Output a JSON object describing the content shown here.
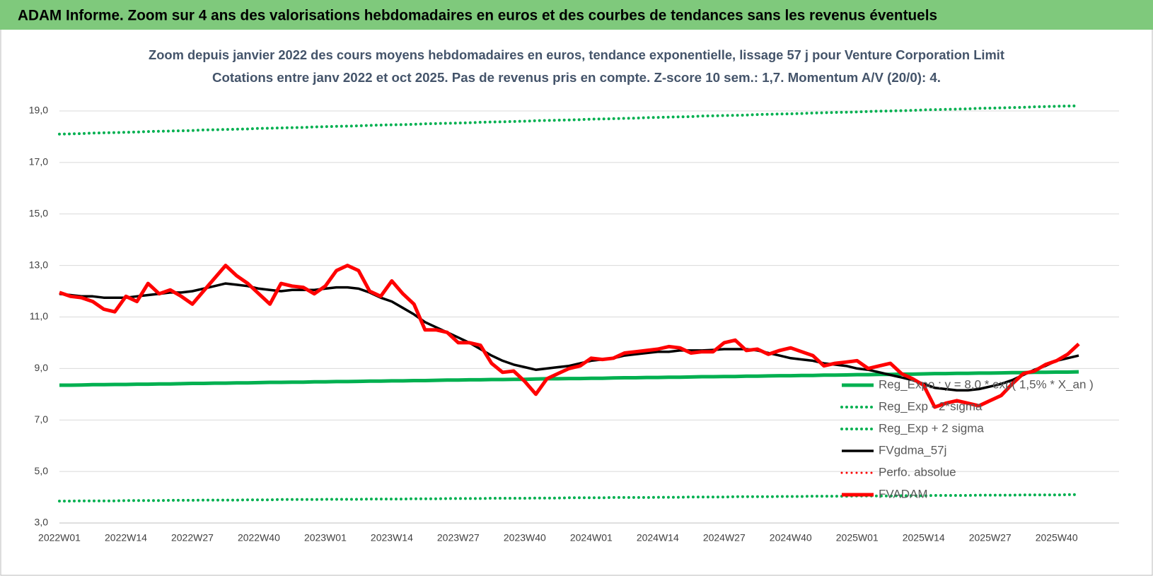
{
  "header": {
    "title": "ADAM Informe. Zoom sur 4 ans des valorisations hebdomadaires en euros et des courbes de tendances sans les revenus éventuels"
  },
  "chart_data": {
    "type": "line",
    "title": "Zoom depuis janvier 2022 des cours moyens hebdomadaires en euros, tendance exponentielle, lissage 57 j pour Venture Corporation Limit",
    "subtitle": "Cotations entre janv 2022 et oct 2025. Pas de revenus pris en compte. Z-score 10 sem.: 1,7. Momentum A/V (20/0): 4.",
    "categories": [
      "2022W01",
      null,
      null,
      null,
      null,
      null,
      "2022W14",
      null,
      null,
      null,
      null,
      null,
      "2022W27",
      null,
      null,
      null,
      null,
      null,
      "2022W40",
      null,
      null,
      null,
      null,
      null,
      "2023W01",
      null,
      null,
      null,
      null,
      null,
      "2023W14",
      null,
      null,
      null,
      null,
      null,
      "2023W27",
      null,
      null,
      null,
      null,
      null,
      "2023W40",
      null,
      null,
      null,
      null,
      null,
      "2024W01",
      null,
      null,
      null,
      null,
      null,
      "2024W14",
      null,
      null,
      null,
      null,
      null,
      "2024W27",
      null,
      null,
      null,
      null,
      null,
      "2024W40",
      null,
      null,
      null,
      null,
      null,
      "2025W01",
      null,
      null,
      null,
      null,
      null,
      "2025W14",
      null,
      null,
      null,
      null,
      null,
      "2025W27",
      null,
      null,
      null,
      null,
      null,
      "2025W40",
      null,
      null
    ],
    "series": [
      {
        "name": "Reg_Expo : y = 8,0 * exp( 1,5% *  X_an )",
        "color": "#00b050",
        "line_style": "solid",
        "values": [
          8.35,
          8.35,
          8.36,
          8.37,
          8.37,
          8.38,
          8.38,
          8.39,
          8.39,
          8.4,
          8.4,
          8.41,
          8.42,
          8.42,
          8.43,
          8.43,
          8.44,
          8.44,
          8.45,
          8.46,
          8.46,
          8.47,
          8.47,
          8.48,
          8.48,
          8.49,
          8.49,
          8.5,
          8.51,
          8.51,
          8.52,
          8.52,
          8.53,
          8.53,
          8.54,
          8.55,
          8.55,
          8.56,
          8.56,
          8.57,
          8.57,
          8.58,
          8.58,
          8.59,
          8.6,
          8.6,
          8.61,
          8.61,
          8.62,
          8.62,
          8.63,
          8.64,
          8.64,
          8.65,
          8.65,
          8.66,
          8.66,
          8.67,
          8.68,
          8.68,
          8.69,
          8.69,
          8.7,
          8.7,
          8.71,
          8.72,
          8.72,
          8.73,
          8.73,
          8.74,
          8.74,
          8.75,
          8.76,
          8.76,
          8.77,
          8.77,
          8.78,
          8.78,
          8.79,
          8.8,
          8.8,
          8.81,
          8.81,
          8.82,
          8.82,
          8.83,
          8.84,
          8.84,
          8.85,
          8.85,
          8.86,
          8.86,
          8.87
        ]
      },
      {
        "name": "Reg_Exp - 2*sigma",
        "color": "#00b050",
        "line_style": "dotted",
        "values": [
          3.85,
          3.85,
          3.86,
          3.86,
          3.86,
          3.86,
          3.87,
          3.87,
          3.87,
          3.87,
          3.88,
          3.88,
          3.88,
          3.89,
          3.89,
          3.89,
          3.89,
          3.9,
          3.9,
          3.9,
          3.91,
          3.91,
          3.91,
          3.91,
          3.92,
          3.92,
          3.92,
          3.92,
          3.93,
          3.93,
          3.93,
          3.93,
          3.94,
          3.94,
          3.94,
          3.95,
          3.95,
          3.95,
          3.95,
          3.96,
          3.96,
          3.96,
          3.96,
          3.97,
          3.97,
          3.97,
          3.98,
          3.98,
          3.98,
          3.98,
          3.99,
          3.99,
          3.99,
          3.99,
          4.0,
          4.0,
          4.0,
          4.01,
          4.01,
          4.01,
          4.01,
          4.02,
          4.02,
          4.02,
          4.02,
          4.03,
          4.03,
          4.03,
          4.04,
          4.04,
          4.04,
          4.04,
          4.05,
          4.05,
          4.05,
          4.05,
          4.06,
          4.06,
          4.06,
          4.07,
          4.07,
          4.07,
          4.07,
          4.08,
          4.08,
          4.08,
          4.08,
          4.09,
          4.09,
          4.09,
          4.09,
          4.1,
          4.1
        ]
      },
      {
        "name": "Reg_Exp + 2 sigma",
        "color": "#00b050",
        "line_style": "dotted",
        "values": [
          18.1,
          18.11,
          18.12,
          18.14,
          18.15,
          18.16,
          18.17,
          18.18,
          18.2,
          18.21,
          18.22,
          18.23,
          18.24,
          18.26,
          18.27,
          18.28,
          18.29,
          18.3,
          18.32,
          18.33,
          18.34,
          18.35,
          18.36,
          18.38,
          18.39,
          18.4,
          18.41,
          18.42,
          18.44,
          18.45,
          18.46,
          18.47,
          18.48,
          18.5,
          18.51,
          18.52,
          18.53,
          18.54,
          18.56,
          18.57,
          18.58,
          18.59,
          18.6,
          18.62,
          18.63,
          18.64,
          18.65,
          18.66,
          18.68,
          18.69,
          18.7,
          18.71,
          18.72,
          18.74,
          18.75,
          18.76,
          18.77,
          18.78,
          18.8,
          18.81,
          18.82,
          18.83,
          18.84,
          18.86,
          18.87,
          18.88,
          18.89,
          18.9,
          18.92,
          18.93,
          18.94,
          18.95,
          18.96,
          18.98,
          18.99,
          19.0,
          19.01,
          19.02,
          19.04,
          19.05,
          19.06,
          19.07,
          19.08,
          19.1,
          19.11,
          19.12,
          19.13,
          19.14,
          19.16,
          19.17,
          19.18,
          19.19,
          19.2
        ]
      },
      {
        "name": "FVgdma_57j",
        "color": "#000000",
        "line_style": "solid",
        "values": [
          11.9,
          11.85,
          11.8,
          11.8,
          11.75,
          11.75,
          11.75,
          11.8,
          11.85,
          11.9,
          11.95,
          11.95,
          12.0,
          12.1,
          12.2,
          12.3,
          12.25,
          12.2,
          12.1,
          12.05,
          12.0,
          12.05,
          12.05,
          12.05,
          12.1,
          12.15,
          12.15,
          12.1,
          11.95,
          11.75,
          11.6,
          11.35,
          11.1,
          10.8,
          10.6,
          10.4,
          10.2,
          10.0,
          9.75,
          9.5,
          9.3,
          9.15,
          9.05,
          8.95,
          9.0,
          9.05,
          9.1,
          9.2,
          9.3,
          9.35,
          9.4,
          9.5,
          9.55,
          9.6,
          9.65,
          9.65,
          9.7,
          9.7,
          9.7,
          9.72,
          9.75,
          9.75,
          9.75,
          9.7,
          9.6,
          9.5,
          9.4,
          9.35,
          9.3,
          9.2,
          9.15,
          9.1,
          9.0,
          8.95,
          8.85,
          8.75,
          8.65,
          8.55,
          8.4,
          8.25,
          8.2,
          8.15,
          8.15,
          8.2,
          8.3,
          8.4,
          8.55,
          8.75,
          8.95,
          9.1,
          9.3,
          9.4,
          9.5
        ]
      },
      {
        "name": "Perfo. absolue",
        "color": "#ff0000",
        "line_style": "dotted",
        "values": [
          null,
          null,
          null,
          null,
          null,
          null,
          null,
          null,
          null,
          null,
          null,
          null,
          null,
          null,
          null,
          null,
          null,
          null,
          null,
          null,
          null,
          null,
          null,
          null,
          null,
          null,
          null,
          null,
          null,
          null,
          null,
          null,
          null,
          null,
          null,
          null,
          null,
          null,
          null,
          null,
          null,
          null,
          null,
          null,
          null,
          null,
          null,
          null,
          null,
          null,
          null,
          null,
          null,
          null,
          null,
          null,
          null,
          null,
          null,
          null,
          null,
          null,
          null,
          null,
          null,
          null,
          null,
          null,
          null,
          null,
          null,
          null,
          null,
          null,
          null,
          null,
          null,
          null,
          null,
          null,
          null,
          null,
          null,
          null,
          null,
          null,
          null,
          null,
          null,
          null,
          null,
          null,
          null
        ]
      },
      {
        "name": "FVADAM",
        "color": "#ff0000",
        "line_style": "solid",
        "values": [
          11.95,
          11.8,
          11.75,
          11.6,
          11.3,
          11.2,
          11.8,
          11.6,
          12.3,
          11.9,
          12.05,
          11.8,
          11.5,
          12.0,
          12.5,
          13.0,
          12.6,
          12.3,
          11.9,
          11.5,
          12.3,
          12.2,
          12.15,
          11.9,
          12.2,
          12.8,
          13.0,
          12.8,
          12.0,
          11.8,
          12.4,
          11.9,
          11.5,
          10.5,
          10.5,
          10.4,
          10.0,
          10.0,
          9.9,
          9.2,
          8.85,
          8.9,
          8.5,
          8.0,
          8.6,
          8.8,
          9.0,
          9.1,
          9.4,
          9.35,
          9.4,
          9.6,
          9.65,
          9.7,
          9.75,
          9.85,
          9.8,
          9.6,
          9.65,
          9.65,
          10.0,
          10.1,
          9.7,
          9.75,
          9.55,
          9.7,
          9.8,
          9.65,
          9.5,
          9.1,
          9.2,
          9.25,
          9.3,
          9.0,
          9.1,
          9.2,
          8.8,
          8.6,
          8.35,
          7.5,
          7.65,
          7.75,
          7.65,
          7.55,
          7.75,
          7.95,
          8.4,
          8.8,
          8.9,
          9.15,
          9.3,
          9.55,
          9.95
        ]
      }
    ],
    "ylim": [
      3,
      20
    ],
    "yticks": [
      {
        "value": 3,
        "label": "3,0"
      },
      {
        "value": 5,
        "label": "5,0"
      },
      {
        "value": 7,
        "label": "7,0"
      },
      {
        "value": 9,
        "label": "9,0"
      },
      {
        "value": 11,
        "label": "11,0"
      },
      {
        "value": 13,
        "label": "13,0"
      },
      {
        "value": 15,
        "label": "15,0"
      },
      {
        "value": 17,
        "label": "17,0"
      },
      {
        "value": 19,
        "label": "19,0"
      }
    ],
    "grid": true
  }
}
